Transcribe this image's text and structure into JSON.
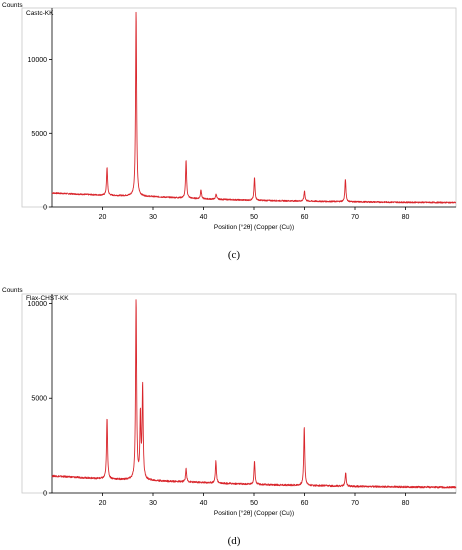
{
  "figure": {
    "panels": [
      {
        "label": "(c)"
      },
      {
        "label": "(d)"
      }
    ]
  },
  "chart_data": [
    {
      "type": "line",
      "ylabel": "Counts",
      "xlabel": "Position [°2θ] (Copper (Cu))",
      "legend": "Castc-KK",
      "legend_placement": "top-left",
      "xlim": [
        10,
        90
      ],
      "ylim": [
        0,
        13500
      ],
      "x_ticks": [
        20,
        30,
        40,
        50,
        60,
        70,
        80
      ],
      "y_ticks": [
        0,
        5000,
        10000
      ],
      "grid": false,
      "color": "#d9262c",
      "baseline": {
        "x": [
          10,
          20,
          30,
          40,
          50,
          60,
          70,
          80,
          90
        ],
        "y": [
          950,
          800,
          700,
          550,
          450,
          400,
          350,
          320,
          300
        ]
      },
      "peaks": [
        {
          "x": 20.9,
          "y": 2700
        },
        {
          "x": 26.65,
          "y": 13300
        },
        {
          "x": 36.55,
          "y": 3200
        },
        {
          "x": 39.5,
          "y": 1200
        },
        {
          "x": 42.5,
          "y": 900
        },
        {
          "x": 50.1,
          "y": 2000
        },
        {
          "x": 60.0,
          "y": 1100
        },
        {
          "x": 68.1,
          "y": 1900
        }
      ]
    },
    {
      "type": "line",
      "ylabel": "Counts",
      "xlabel": "Position [°2θ] (Copper (Cu))",
      "legend": "Flax-CHST-KK",
      "legend_placement": "top-left",
      "xlim": [
        10,
        90
      ],
      "ylim": [
        0,
        10500
      ],
      "x_ticks": [
        20,
        30,
        40,
        50,
        60,
        70,
        80
      ],
      "y_ticks": [
        0,
        5000,
        10000
      ],
      "grid": false,
      "color": "#d9262c",
      "baseline": {
        "x": [
          10,
          20,
          30,
          40,
          50,
          60,
          70,
          80,
          90
        ],
        "y": [
          900,
          750,
          650,
          550,
          450,
          400,
          350,
          320,
          300
        ]
      },
      "peaks": [
        {
          "x": 20.9,
          "y": 4000
        },
        {
          "x": 26.65,
          "y": 10200
        },
        {
          "x": 27.5,
          "y": 4000
        },
        {
          "x": 27.95,
          "y": 5600
        },
        {
          "x": 36.55,
          "y": 1300
        },
        {
          "x": 42.45,
          "y": 1700
        },
        {
          "x": 50.1,
          "y": 1700
        },
        {
          "x": 59.95,
          "y": 3500
        },
        {
          "x": 68.15,
          "y": 1100
        }
      ]
    }
  ]
}
